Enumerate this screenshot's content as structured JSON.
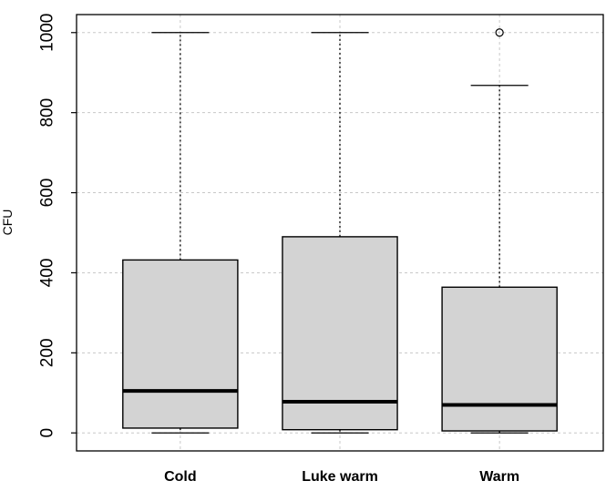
{
  "chart_data": {
    "type": "box",
    "title": "",
    "xlabel": "",
    "ylabel": "CFU",
    "ylim": [
      -45,
      1045
    ],
    "yticks": [
      0,
      200,
      400,
      600,
      800,
      1000
    ],
    "grid": true,
    "categories": [
      "Cold",
      "Luke warm",
      "Warm"
    ],
    "boxes": [
      {
        "name": "Cold",
        "whisker_low": 0,
        "q1": 12,
        "median": 105,
        "q3": 432,
        "whisker_high": 1000,
        "outliers": []
      },
      {
        "name": "Luke warm",
        "whisker_low": 0,
        "q1": 8,
        "median": 78,
        "q3": 490,
        "whisker_high": 1000,
        "outliers": []
      },
      {
        "name": "Warm",
        "whisker_low": 0,
        "q1": 5,
        "median": 70,
        "q3": 364,
        "whisker_high": 868,
        "outliers": [
          1000
        ]
      }
    ],
    "colors": {
      "box_fill": "#d3d3d3",
      "stroke": "#000000",
      "grid": "#c8c8c8"
    }
  }
}
